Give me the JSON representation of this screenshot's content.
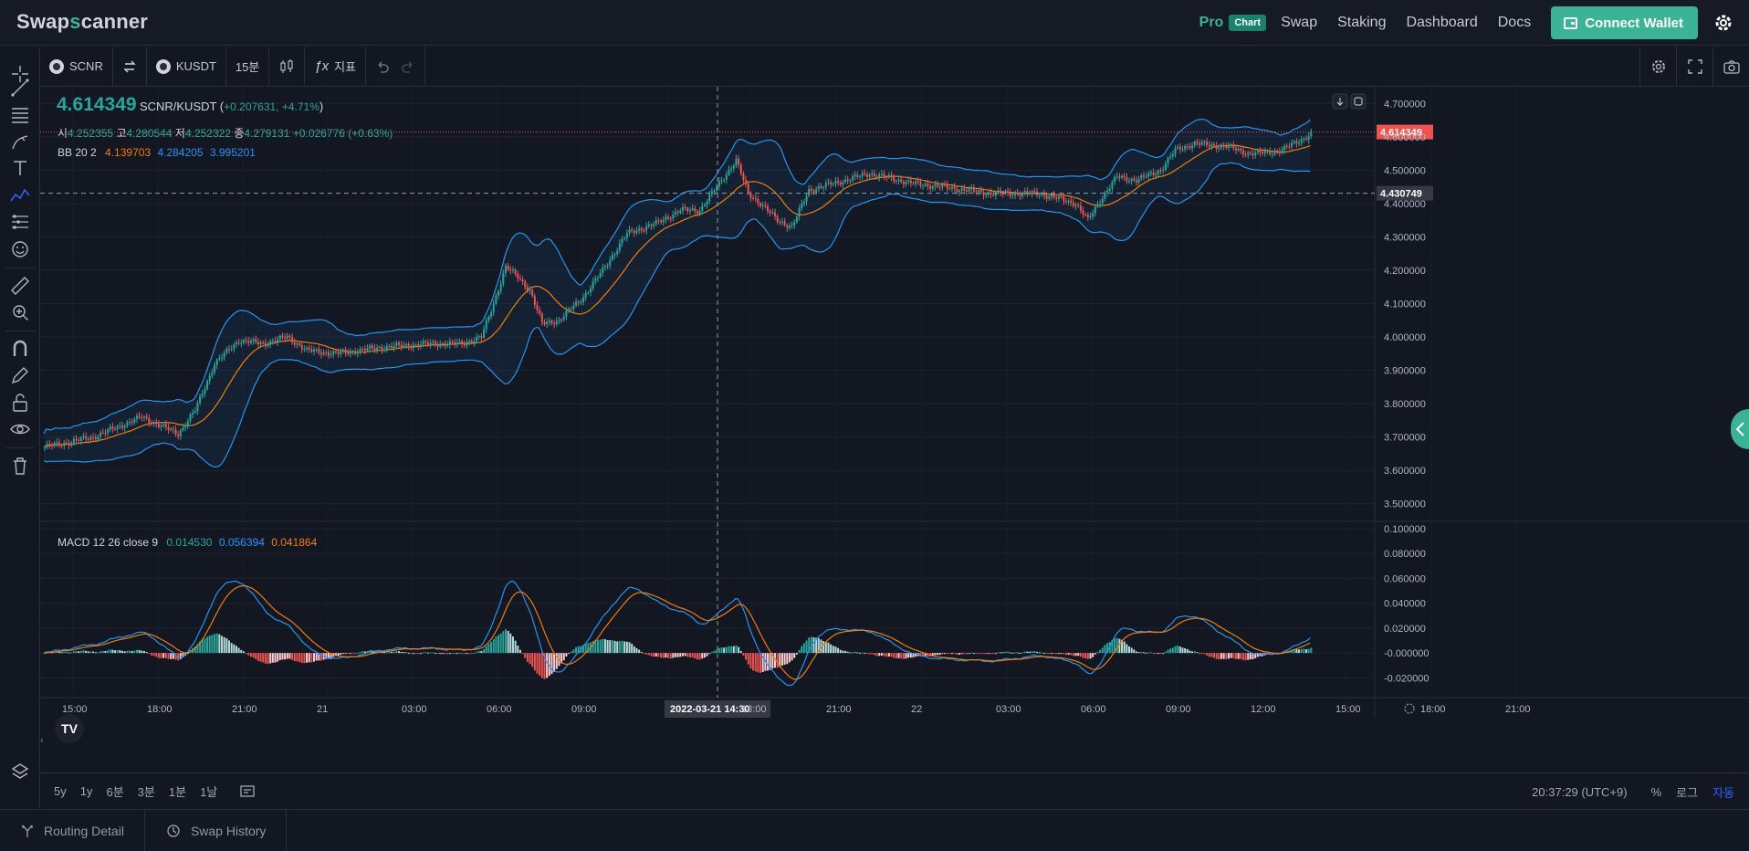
{
  "nav": {
    "logo_part1": "Swap",
    "logo_accent": "s",
    "logo_part2": "canner",
    "pro": "Pro",
    "chart_badge": "Chart",
    "links": [
      "Swap",
      "Staking",
      "Dashboard",
      "Docs"
    ],
    "connect_wallet": "Connect Wallet"
  },
  "toolbar": {
    "base": "SCNR",
    "quote": "KUSDT",
    "interval": "15분",
    "indicators": "지표"
  },
  "legend": {
    "price": "4.614349",
    "pair": "SCNR/KUSDT",
    "change": "+0.207631, +4.71%",
    "open_label": "시",
    "open": "4.252355",
    "high_label": "고",
    "high": "4.280544",
    "low_label": "저",
    "low": "4.252322",
    "close_label": "종",
    "close": "4.279131",
    "close_change": "+0.026776 (+0.63%)",
    "bb_label": "BB 20 2",
    "bb_basis": "4.139703",
    "bb_upper": "4.284205",
    "bb_lower": "3.995201",
    "macd_label": "MACD 12 26 close 9",
    "macd_hist": "0.014530",
    "macd_line": "0.056394",
    "macd_signal": "0.041864"
  },
  "price_axis": {
    "labels": [
      "4.700000",
      "4.600000",
      "4.500000",
      "4.400000",
      "4.300000",
      "4.200000",
      "4.100000",
      "4.000000",
      "3.900000",
      "3.800000",
      "3.700000",
      "3.600000",
      "3.500000"
    ],
    "last_price": "4.614349",
    "crosshair_price": "4.430749"
  },
  "macd_axis": {
    "labels": [
      "0.100000",
      "0.080000",
      "0.060000",
      "0.040000",
      "0.020000",
      "-0.000000",
      "-0.020000"
    ]
  },
  "time_axis": {
    "labels": [
      "15:00",
      "18:00",
      "21:00",
      "21",
      "03:00",
      "06:00",
      "09:00",
      "12:00",
      "18:00",
      "21:00",
      "22",
      "03:00",
      "06:00",
      "09:00",
      "12:00",
      "15:00",
      "18:00",
      "21:00"
    ],
    "crosshair_label": "2022-03-21   14:30"
  },
  "ranges": [
    "5y",
    "1y",
    "6분",
    "3분",
    "1분",
    "1날"
  ],
  "status": {
    "clock": "20:37:29 (UTC+9)",
    "percent": "%",
    "log": "로그",
    "auto": "자동"
  },
  "bottom_tabs": [
    "Routing Detail",
    "Swap History"
  ],
  "colors": {
    "up": "#26a69a",
    "down": "#ef5350",
    "accent": "#3bb395",
    "bb_band": "#2196f3",
    "bb_basis": "#f57c00"
  },
  "chart_data": {
    "type": "candlestick",
    "ylim": [
      3.45,
      4.75
    ],
    "key_closes": [
      [
        0,
        3.67
      ],
      [
        20,
        3.7
      ],
      [
        40,
        3.76
      ],
      [
        55,
        3.71
      ],
      [
        62,
        3.78
      ],
      [
        70,
        3.92
      ],
      [
        80,
        3.99
      ],
      [
        90,
        3.98
      ],
      [
        100,
        4.0
      ],
      [
        108,
        3.96
      ],
      [
        120,
        3.95
      ],
      [
        140,
        3.97
      ],
      [
        160,
        3.98
      ],
      [
        172,
        3.98
      ],
      [
        180,
        4.0
      ],
      [
        185,
        4.1
      ],
      [
        190,
        4.21
      ],
      [
        195,
        4.18
      ],
      [
        200,
        4.14
      ],
      [
        205,
        4.04
      ],
      [
        212,
        4.05
      ],
      [
        222,
        4.12
      ],
      [
        230,
        4.2
      ],
      [
        240,
        4.31
      ],
      [
        252,
        4.34
      ],
      [
        262,
        4.38
      ],
      [
        270,
        4.38
      ],
      [
        280,
        4.48
      ],
      [
        285,
        4.53
      ],
      [
        290,
        4.43
      ],
      [
        295,
        4.4
      ],
      [
        302,
        4.35
      ],
      [
        308,
        4.33
      ],
      [
        315,
        4.44
      ],
      [
        325,
        4.46
      ],
      [
        340,
        4.49
      ],
      [
        358,
        4.46
      ],
      [
        370,
        4.45
      ],
      [
        390,
        4.43
      ],
      [
        410,
        4.43
      ],
      [
        425,
        4.4
      ],
      [
        430,
        4.35
      ],
      [
        435,
        4.41
      ],
      [
        442,
        4.48
      ],
      [
        450,
        4.47
      ],
      [
        460,
        4.5
      ],
      [
        466,
        4.56
      ],
      [
        474,
        4.58
      ],
      [
        488,
        4.57
      ],
      [
        496,
        4.55
      ],
      [
        500,
        4.55
      ],
      [
        510,
        4.56
      ],
      [
        520,
        4.6
      ],
      [
        522,
        4.61
      ]
    ],
    "macd_hist_range": [
      -0.025,
      0.016
    ]
  }
}
